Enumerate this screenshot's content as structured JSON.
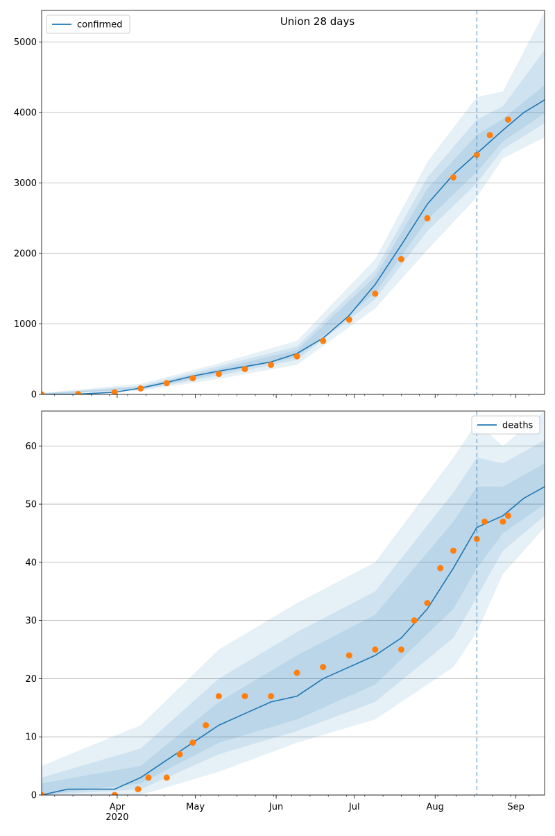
{
  "title": "Union 28 days",
  "colors": {
    "model": "#1f77b4",
    "observed": "#ff7f0e",
    "band": "#1f77b4",
    "grid": "#b0b0b0",
    "forecast_line": "#1f77b4"
  },
  "chart_data": [
    {
      "type": "line",
      "title": "Union 28 days",
      "xlabel": "",
      "ylabel": "",
      "xlim": [
        "2020-03-03",
        "2020-09-12"
      ],
      "ylim": [
        0,
        5450
      ],
      "yticks": [
        0,
        1000,
        2000,
        3000,
        4000,
        5000
      ],
      "xtick_labels": [],
      "grid": "horizontal",
      "legend": {
        "placement": "top-left",
        "entries": [
          "confirmed"
        ]
      },
      "forecast_start": "2020-08-17",
      "series": [
        {
          "name": "confirmed",
          "kind": "model",
          "x": [
            "2020-03-03",
            "2020-03-17",
            "2020-03-31",
            "2020-04-10",
            "2020-04-20",
            "2020-04-30",
            "2020-05-10",
            "2020-05-20",
            "2020-05-30",
            "2020-06-09",
            "2020-06-19",
            "2020-06-29",
            "2020-07-09",
            "2020-07-19",
            "2020-07-29",
            "2020-08-08",
            "2020-08-17",
            "2020-08-27",
            "2020-09-04",
            "2020-09-12"
          ],
          "values": [
            0,
            5,
            30,
            90,
            170,
            260,
            330,
            395,
            460,
            580,
            800,
            1120,
            1560,
            2120,
            2700,
            3120,
            3420,
            3750,
            4000,
            4180
          ]
        },
        {
          "name": "observed",
          "kind": "points",
          "x": [
            "2020-03-03",
            "2020-03-17",
            "2020-03-31",
            "2020-04-10",
            "2020-04-20",
            "2020-04-30",
            "2020-05-10",
            "2020-05-20",
            "2020-05-30",
            "2020-06-09",
            "2020-06-19",
            "2020-06-29",
            "2020-07-09",
            "2020-07-19",
            "2020-07-29",
            "2020-08-08",
            "2020-08-17",
            "2020-08-22",
            "2020-08-29"
          ],
          "values": [
            0,
            5,
            30,
            85,
            160,
            230,
            290,
            360,
            420,
            540,
            760,
            1060,
            1430,
            1920,
            2500,
            3080,
            3400,
            3680,
            3900
          ]
        }
      ],
      "bands": [
        {
          "x": [
            "2020-03-03",
            "2020-04-10",
            "2020-05-10",
            "2020-06-09",
            "2020-07-09",
            "2020-07-29",
            "2020-08-17",
            "2020-08-27",
            "2020-09-12"
          ],
          "lower": [
            0,
            50,
            220,
            420,
            1220,
            2050,
            2800,
            3350,
            3650
          ],
          "upper": [
            20,
            150,
            440,
            760,
            1920,
            3300,
            4220,
            4300,
            5430
          ]
        },
        {
          "x": [
            "2020-03-03",
            "2020-04-10",
            "2020-05-10",
            "2020-06-09",
            "2020-07-09",
            "2020-07-29",
            "2020-08-17",
            "2020-08-27",
            "2020-09-12"
          ],
          "lower": [
            0,
            65,
            265,
            490,
            1350,
            2320,
            3000,
            3480,
            3850
          ],
          "upper": [
            14,
            120,
            400,
            680,
            1760,
            3080,
            3900,
            4090,
            4890
          ]
        },
        {
          "x": [
            "2020-03-03",
            "2020-04-10",
            "2020-05-10",
            "2020-06-09",
            "2020-07-09",
            "2020-07-29",
            "2020-08-17",
            "2020-08-27",
            "2020-09-12"
          ],
          "lower": [
            0,
            75,
            295,
            530,
            1440,
            2480,
            3160,
            3590,
            3990
          ],
          "upper": [
            10,
            105,
            365,
            630,
            1670,
            2920,
            3680,
            3910,
            4390
          ]
        }
      ]
    },
    {
      "type": "line",
      "title": "",
      "xlabel": "",
      "ylabel": "",
      "xlim": [
        "2020-03-03",
        "2020-09-12"
      ],
      "ylim": [
        0,
        66
      ],
      "yticks": [
        0,
        10,
        20,
        30,
        40,
        50,
        60
      ],
      "xtick_labels": [
        "Apr\n2020",
        "May",
        "Jun",
        "Jul",
        "Aug",
        "Sep"
      ],
      "grid": "horizontal",
      "legend": {
        "placement": "top-right",
        "entries": [
          "deaths"
        ]
      },
      "forecast_start": "2020-08-17",
      "series": [
        {
          "name": "deaths",
          "kind": "model",
          "x": [
            "2020-03-03",
            "2020-03-13",
            "2020-03-31",
            "2020-04-10",
            "2020-04-20",
            "2020-04-30",
            "2020-05-10",
            "2020-05-20",
            "2020-05-30",
            "2020-06-09",
            "2020-06-19",
            "2020-06-29",
            "2020-07-09",
            "2020-07-19",
            "2020-07-29",
            "2020-08-08",
            "2020-08-17",
            "2020-08-27",
            "2020-09-04",
            "2020-09-12"
          ],
          "values": [
            0,
            1,
            1,
            3,
            6,
            9,
            12,
            14,
            16,
            17,
            20,
            22,
            24,
            27,
            32,
            39,
            46,
            48,
            51,
            53
          ]
        },
        {
          "name": "observed",
          "kind": "points",
          "x": [
            "2020-03-03",
            "2020-03-31",
            "2020-04-09",
            "2020-04-13",
            "2020-04-20",
            "2020-04-25",
            "2020-04-30",
            "2020-05-05",
            "2020-05-10",
            "2020-05-20",
            "2020-05-30",
            "2020-06-09",
            "2020-06-19",
            "2020-06-29",
            "2020-07-09",
            "2020-07-19",
            "2020-07-24",
            "2020-07-29",
            "2020-08-03",
            "2020-08-08",
            "2020-08-17",
            "2020-08-20",
            "2020-08-27",
            "2020-08-29"
          ],
          "values": [
            0,
            0,
            1,
            3,
            3,
            7,
            9,
            12,
            17,
            17,
            17,
            21,
            22,
            24,
            25,
            25,
            30,
            33,
            39,
            42,
            44,
            47,
            47,
            48
          ]
        }
      ],
      "bands": [
        {
          "x": [
            "2020-03-03",
            "2020-04-10",
            "2020-05-10",
            "2020-06-09",
            "2020-07-09",
            "2020-08-08",
            "2020-08-17",
            "2020-08-27",
            "2020-09-12"
          ],
          "lower": [
            0,
            0,
            4,
            9,
            13,
            22,
            28,
            38,
            46
          ],
          "upper": [
            5,
            12,
            25,
            33,
            40,
            58,
            64,
            60,
            66
          ]
        },
        {
          "x": [
            "2020-03-03",
            "2020-04-10",
            "2020-05-10",
            "2020-06-09",
            "2020-07-09",
            "2020-08-08",
            "2020-08-17",
            "2020-08-27",
            "2020-09-12"
          ],
          "lower": [
            0,
            1,
            7,
            11,
            16,
            27,
            34,
            42,
            48
          ],
          "upper": [
            3,
            8,
            20,
            28,
            35,
            52,
            58,
            57,
            61
          ]
        },
        {
          "x": [
            "2020-03-03",
            "2020-04-10",
            "2020-05-10",
            "2020-06-09",
            "2020-07-09",
            "2020-08-08",
            "2020-08-17",
            "2020-08-27",
            "2020-09-12"
          ],
          "lower": [
            0,
            2,
            9,
            13,
            19,
            32,
            39,
            45,
            50
          ],
          "upper": [
            2,
            5,
            16,
            24,
            31,
            47,
            53,
            53,
            57
          ]
        }
      ]
    }
  ]
}
